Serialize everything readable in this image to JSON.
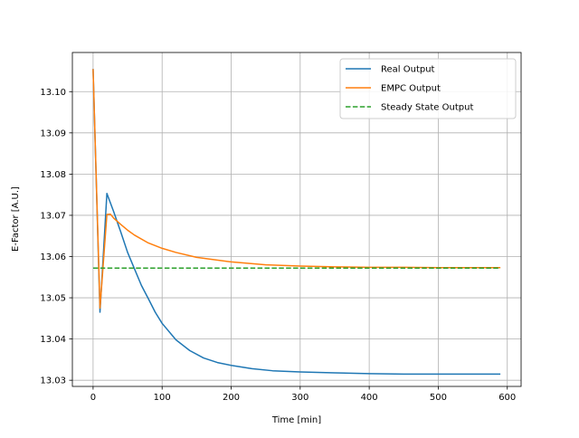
{
  "chart_data": {
    "type": "line",
    "title": "",
    "xlabel": "Time [min]",
    "ylabel": "E-Factor [A.U.]",
    "xlim": [
      -30,
      620
    ],
    "ylim": [
      13.0285,
      13.1095
    ],
    "xticks": [
      0,
      100,
      200,
      300,
      400,
      500,
      600
    ],
    "xtick_labels": [
      "0",
      "100",
      "200",
      "300",
      "400",
      "500",
      "600"
    ],
    "yticks": [
      13.03,
      13.04,
      13.05,
      13.06,
      13.07,
      13.08,
      13.09,
      13.1
    ],
    "ytick_labels": [
      "13.03",
      "13.04",
      "13.05",
      "13.06",
      "13.07",
      "13.08",
      "13.09",
      "13.10"
    ],
    "grid": true,
    "legend_position": "top-right",
    "series": [
      {
        "name": "Real Output",
        "color": "#1f77b4",
        "style": "solid",
        "x": [
          0,
          10,
          20,
          30,
          40,
          50,
          60,
          70,
          80,
          90,
          100,
          120,
          140,
          160,
          180,
          200,
          230,
          260,
          300,
          350,
          400,
          450,
          500,
          550,
          590
        ],
        "y": [
          13.1055,
          13.0465,
          13.0753,
          13.0708,
          13.066,
          13.061,
          13.057,
          13.053,
          13.0498,
          13.0465,
          13.0438,
          13.0398,
          13.0372,
          13.0354,
          13.0343,
          13.0336,
          13.0328,
          13.0323,
          13.032,
          13.0318,
          13.0316,
          13.0315,
          13.0315,
          13.0315,
          13.0315
        ]
      },
      {
        "name": "EMPC Output",
        "color": "#ff7f0e",
        "style": "solid",
        "x": [
          0,
          10,
          20,
          25,
          30,
          40,
          50,
          60,
          80,
          100,
          120,
          150,
          200,
          250,
          300,
          350,
          400,
          450,
          500,
          550,
          590
        ],
        "y": [
          13.1055,
          13.0475,
          13.0702,
          13.0703,
          13.0693,
          13.0678,
          13.0664,
          13.0652,
          13.0633,
          13.062,
          13.061,
          13.0598,
          13.0587,
          13.058,
          13.0577,
          13.0575,
          13.0574,
          13.0574,
          13.0573,
          13.0573,
          13.0573
        ]
      },
      {
        "name": "Steady State Output",
        "color": "#2ca02c",
        "style": "dashed",
        "x": [
          0,
          590
        ],
        "y": [
          13.0572,
          13.0572
        ]
      }
    ]
  }
}
